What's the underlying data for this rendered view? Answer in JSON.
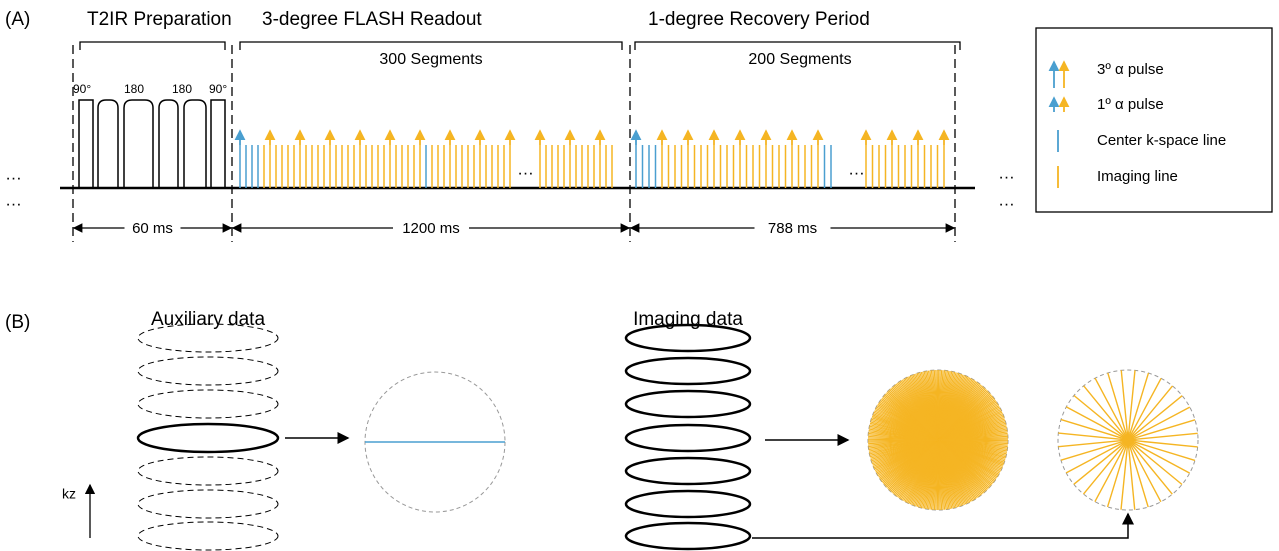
{
  "panel_a": {
    "label": "(A)",
    "sections": [
      "T2IR Preparation",
      "3-degree FLASH Readout",
      "1-degree Recovery Period"
    ],
    "segments": [
      "300 Segments",
      "200 Segments"
    ],
    "pulse_labels": [
      "90°",
      "180",
      "180",
      "90°"
    ],
    "durations": [
      "60 ms",
      "1200 ms",
      "788 ms"
    ],
    "ellipses": [
      "…",
      "…",
      "…",
      "…",
      "…",
      "…"
    ],
    "legend": [
      "3º α pulse",
      "1º α pulse",
      "Center k-space line",
      "Imaging line"
    ]
  },
  "panel_b": {
    "label": "(B)",
    "titles": [
      "Auxiliary data",
      "Imaging data"
    ],
    "axis": "kz"
  }
}
